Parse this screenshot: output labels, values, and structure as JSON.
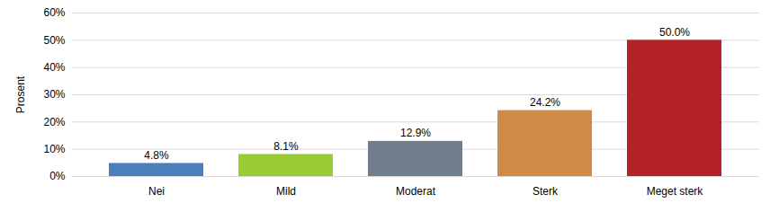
{
  "chart_data": {
    "type": "bar",
    "categories": [
      "Nei",
      "Mild",
      "Moderat",
      "Sterk",
      "Meget sterk"
    ],
    "values": [
      4.8,
      8.1,
      12.9,
      24.2,
      50.0
    ],
    "value_labels": [
      "4.8%",
      "8.1%",
      "12.9%",
      "24.2%",
      "50.0%"
    ],
    "colors": [
      "#4a7fb9",
      "#99cc33",
      "#6f7d8c",
      "#cf8a45",
      "#b22226"
    ],
    "ylabel": "Prosent",
    "ylim": [
      0,
      60
    ],
    "yticks": [
      {
        "value": 0,
        "label": "0%"
      },
      {
        "value": 10,
        "label": "10%"
      },
      {
        "value": 20,
        "label": "20%"
      },
      {
        "value": 30,
        "label": "30%"
      },
      {
        "value": 40,
        "label": "40%"
      },
      {
        "value": 50,
        "label": "50%"
      },
      {
        "value": 60,
        "label": "60%"
      }
    ],
    "grid": true,
    "data_labels": true
  }
}
